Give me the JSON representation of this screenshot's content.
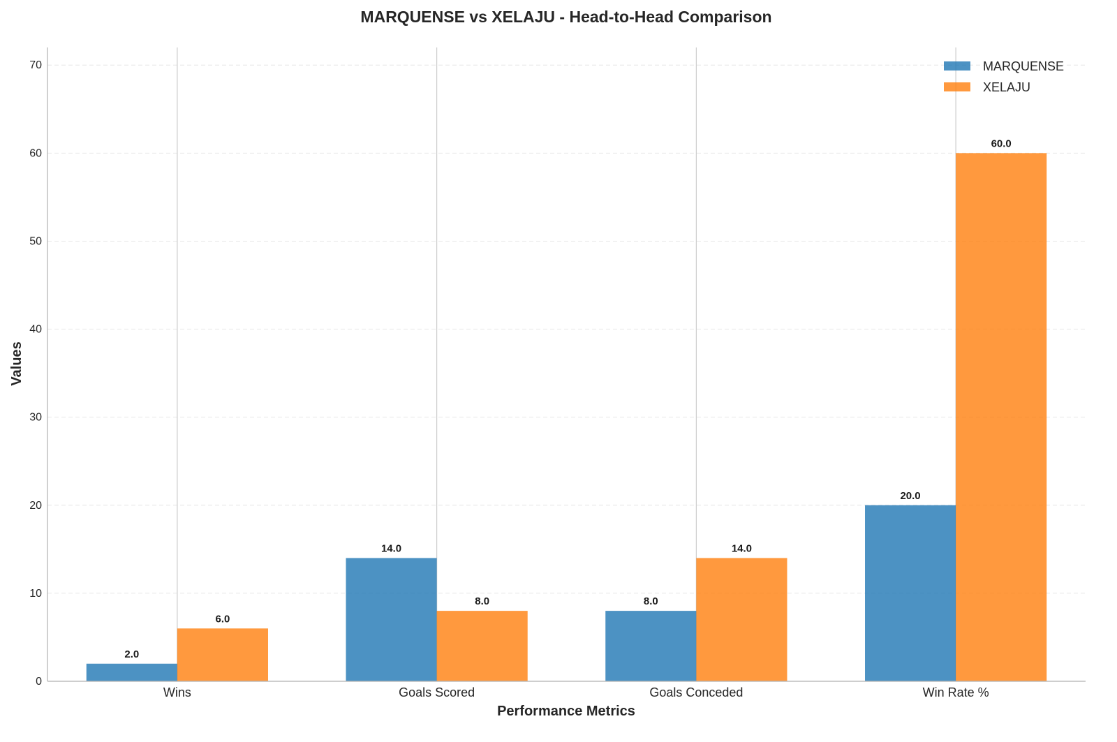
{
  "chart_data": {
    "type": "bar",
    "title": "MARQUENSE vs XELAJU - Head-to-Head Comparison",
    "xlabel": "Performance Metrics",
    "ylabel": "Values",
    "categories": [
      "Wins",
      "Goals Scored",
      "Goals Conceded",
      "Win Rate %"
    ],
    "series": [
      {
        "name": "MARQUENSE",
        "values": [
          2.0,
          14.0,
          8.0,
          20.0
        ],
        "labels": [
          "2.0",
          "14.0",
          "8.0",
          "20.0"
        ],
        "color": "#1f77b4"
      },
      {
        "name": "XELAJU",
        "values": [
          6.0,
          8.0,
          14.0,
          60.0
        ],
        "labels": [
          "6.0",
          "8.0",
          "14.0",
          "60.0"
        ],
        "color": "#ff7f0e"
      }
    ],
    "ylim": [
      0,
      72
    ],
    "yticks": [
      0,
      10,
      20,
      30,
      40,
      50,
      60,
      70
    ],
    "ytick_labels": [
      "0",
      "10",
      "20",
      "30",
      "40",
      "50",
      "60",
      "70"
    ],
    "grid": true,
    "legend_position": "top-right"
  }
}
